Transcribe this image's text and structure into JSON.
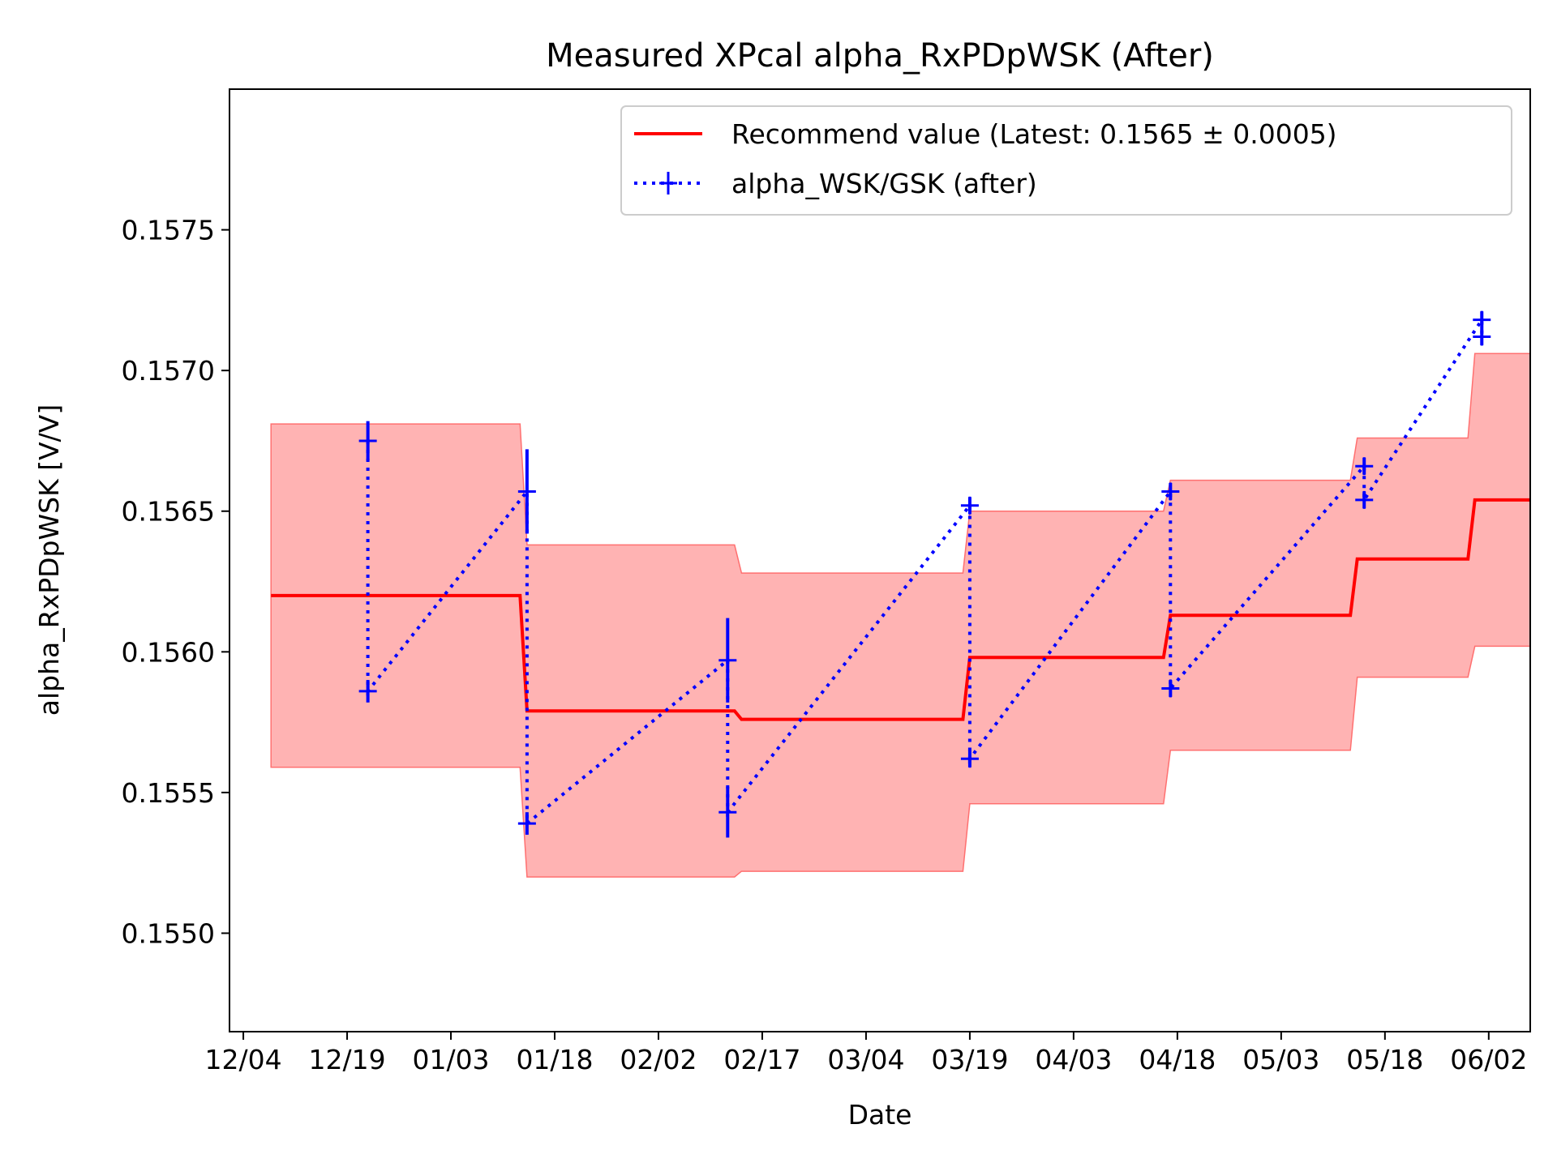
{
  "chart_data": {
    "type": "line",
    "title": "Measured XPcal alpha_RxPDpWSK (After)",
    "xlabel": "Date",
    "ylabel": "alpha_RxPDpWSK [V/V]",
    "xlim": [
      "12/02",
      "06/08"
    ],
    "ylim": [
      0.15465,
      0.158
    ],
    "grid": false,
    "legend_position": "upper-right",
    "x_ticks": [
      "12/04",
      "12/19",
      "01/03",
      "01/18",
      "02/02",
      "02/17",
      "03/04",
      "03/19",
      "04/03",
      "04/18",
      "05/03",
      "05/18",
      "06/02"
    ],
    "y_ticks": [
      "0.1550",
      "0.1555",
      "0.1560",
      "0.1565",
      "0.1570",
      "0.1575"
    ],
    "series": [
      {
        "name": "Recommend value (Latest: 0.1565 ± 0.0005)",
        "style": "step-line-with-band",
        "color": "#ff0000",
        "band_color": "#ff9999",
        "x": [
          "12/08",
          "01/13",
          "01/14",
          "02/13",
          "02/14",
          "03/18",
          "03/19",
          "04/16",
          "04/17",
          "05/13",
          "05/14",
          "05/30",
          "05/31",
          "06/08"
        ],
        "values": [
          0.1562,
          0.1562,
          0.15579,
          0.15579,
          0.15576,
          0.15576,
          0.15598,
          0.15598,
          0.15613,
          0.15613,
          0.15633,
          0.15633,
          0.15654,
          0.15654
        ],
        "lower": [
          0.15559,
          0.15559,
          0.1552,
          0.1552,
          0.15522,
          0.15522,
          0.15546,
          0.15546,
          0.15565,
          0.15565,
          0.15591,
          0.15591,
          0.15602,
          0.15602
        ],
        "upper": [
          0.15681,
          0.15681,
          0.15638,
          0.15638,
          0.15628,
          0.15628,
          0.1565,
          0.1565,
          0.15661,
          0.15661,
          0.15676,
          0.15676,
          0.15706,
          0.15706
        ]
      },
      {
        "name": "alpha_WSK/GSK (after)",
        "style": "dotted-errorbar",
        "color": "#0000ff",
        "points": [
          {
            "x": "12/22",
            "y": 0.15675,
            "err": 7e-05
          },
          {
            "x": "12/22",
            "y": 0.15586,
            "err": 4e-05
          },
          {
            "x": "01/14",
            "y": 0.15657,
            "err": 0.00015
          },
          {
            "x": "01/14",
            "y": 0.15539,
            "err": 4e-05
          },
          {
            "x": "02/12",
            "y": 0.15597,
            "err": 0.00015
          },
          {
            "x": "02/12",
            "y": 0.15543,
            "err": 9e-05
          },
          {
            "x": "03/19",
            "y": 0.15652,
            "err": 3e-05
          },
          {
            "x": "03/19",
            "y": 0.15562,
            "err": 3e-05
          },
          {
            "x": "04/17",
            "y": 0.15657,
            "err": 3e-05
          },
          {
            "x": "04/17",
            "y": 0.15587,
            "err": 3e-05
          },
          {
            "x": "05/15",
            "y": 0.15666,
            "err": 3e-05
          },
          {
            "x": "05/15",
            "y": 0.15654,
            "err": 3e-05
          },
          {
            "x": "06/01",
            "y": 0.15718,
            "err": 3e-05
          },
          {
            "x": "06/01",
            "y": 0.15712,
            "err": 3e-05
          }
        ]
      }
    ]
  }
}
